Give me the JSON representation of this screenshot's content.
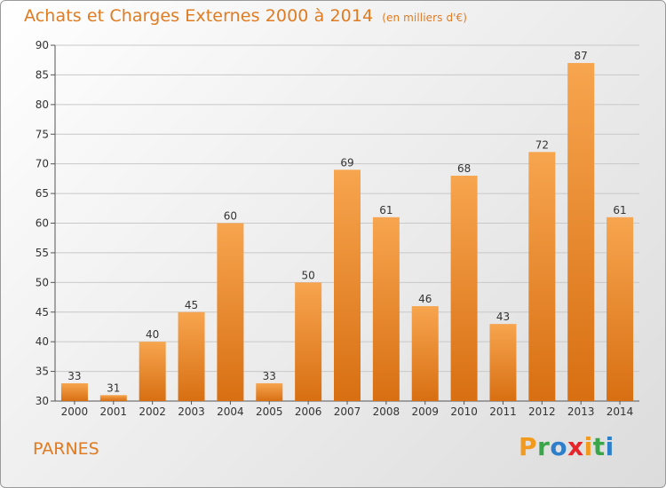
{
  "header": {
    "title": "Achats et Charges Externes 2000 à 2014",
    "subtitle": "(en milliers d'€)"
  },
  "footer": {
    "commune": "PARNES",
    "logo": [
      "P",
      "r",
      "o",
      "x",
      "i",
      "t",
      "i"
    ],
    "logo_colors": [
      "#f29a1e",
      "#3aa64a",
      "#2d7fcb",
      "#e8242b",
      "#f29a1e",
      "#3aa64a",
      "#2d7fcb"
    ]
  },
  "chart_data": {
    "type": "bar",
    "categories": [
      "2000",
      "2001",
      "2002",
      "2003",
      "2004",
      "2005",
      "2006",
      "2007",
      "2008",
      "2009",
      "2010",
      "2011",
      "2012",
      "2013",
      "2014"
    ],
    "values": [
      33,
      31,
      40,
      45,
      60,
      33,
      50,
      69,
      61,
      46,
      68,
      43,
      72,
      87,
      61
    ],
    "title": "Achats et Charges Externes 2000 à 2014",
    "ylim": [
      30,
      90
    ],
    "yticks": [
      30,
      35,
      40,
      45,
      50,
      55,
      60,
      65,
      70,
      75,
      80,
      85,
      90
    ],
    "grid": true,
    "bar_color_top": "#f7a54f",
    "bar_color_bottom": "#d86f12"
  }
}
